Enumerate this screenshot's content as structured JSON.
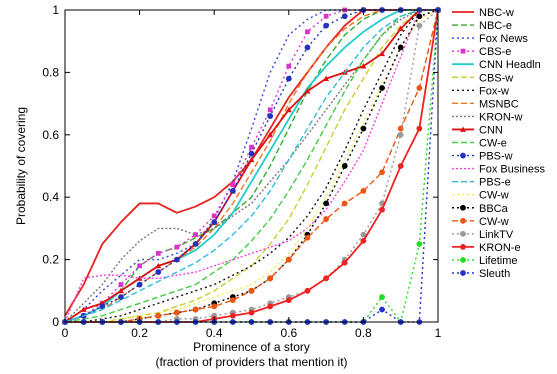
{
  "chart_data": {
    "type": "line",
    "xlabel_lines": [
      "Prominence of a story",
      "(fraction of providers that mention it)"
    ],
    "ylabel": "Probability of covering",
    "xlim": [
      0,
      1
    ],
    "ylim": [
      0,
      1
    ],
    "x_ticks": [
      "0",
      "0.2",
      "0.4",
      "0.6",
      "0.8",
      "1"
    ],
    "y_ticks": [
      "0",
      "0.2",
      "0.4",
      "0.6",
      "0.8",
      "1"
    ],
    "grid": false,
    "legend_position": "right",
    "series": [
      {
        "name": "NBC-w",
        "color": "#e8231f",
        "dash": "",
        "marker": "",
        "x": [
          0,
          0.05,
          0.1,
          0.15,
          0.2,
          0.25,
          0.3,
          0.35,
          0.4,
          0.45,
          0.5,
          0.55,
          0.6,
          0.65,
          0.7,
          0.75,
          0.8,
          0.85,
          0.9,
          0.95,
          1
        ],
        "y": [
          0.02,
          0.12,
          0.25,
          0.32,
          0.38,
          0.38,
          0.35,
          0.37,
          0.4,
          0.45,
          0.52,
          0.62,
          0.72,
          0.8,
          0.88,
          0.95,
          1,
          1,
          1,
          1,
          1
        ]
      },
      {
        "name": "NBC-e",
        "color": "#33aa33",
        "dash": "6,3",
        "marker": "",
        "x": [
          0,
          0.05,
          0.1,
          0.15,
          0.2,
          0.25,
          0.3,
          0.35,
          0.4,
          0.45,
          0.5,
          0.55,
          0.6,
          0.65,
          0.7,
          0.75,
          0.8,
          0.85,
          0.9,
          0.95,
          1
        ],
        "y": [
          0,
          0.02,
          0.05,
          0.1,
          0.18,
          0.22,
          0.24,
          0.27,
          0.3,
          0.35,
          0.4,
          0.5,
          0.62,
          0.74,
          0.84,
          0.92,
          0.97,
          1,
          1,
          1,
          1
        ]
      },
      {
        "name": "Fox News",
        "color": "#3344dd",
        "dash": "2,3",
        "marker": "",
        "x": [
          0,
          0.05,
          0.1,
          0.15,
          0.2,
          0.25,
          0.3,
          0.35,
          0.4,
          0.45,
          0.5,
          0.55,
          0.6,
          0.65,
          0.7,
          0.75,
          0.8,
          0.85,
          0.9,
          0.95,
          1
        ],
        "y": [
          0,
          0.04,
          0.1,
          0.15,
          0.2,
          0.2,
          0.22,
          0.25,
          0.33,
          0.45,
          0.62,
          0.8,
          0.92,
          0.97,
          1,
          1,
          1,
          1,
          1,
          1,
          1
        ]
      },
      {
        "name": "CBS-e",
        "color": "#dd33cc",
        "dash": "2,3",
        "marker": "square",
        "x": [
          0,
          0.05,
          0.1,
          0.15,
          0.2,
          0.25,
          0.3,
          0.35,
          0.4,
          0.45,
          0.5,
          0.55,
          0.6,
          0.65,
          0.7,
          0.75,
          0.8,
          0.85,
          0.9,
          0.95,
          1
        ],
        "y": [
          0,
          0.02,
          0.06,
          0.12,
          0.18,
          0.22,
          0.24,
          0.28,
          0.34,
          0.44,
          0.56,
          0.68,
          0.82,
          0.93,
          0.98,
          1,
          1,
          1,
          1,
          1,
          1
        ]
      },
      {
        "name": "CNN Headln",
        "color": "#22cccc",
        "dash": "",
        "marker": "",
        "x": [
          0,
          0.05,
          0.1,
          0.15,
          0.2,
          0.25,
          0.3,
          0.35,
          0.4,
          0.45,
          0.5,
          0.55,
          0.6,
          0.65,
          0.7,
          0.75,
          0.8,
          0.85,
          0.9,
          0.95,
          1
        ],
        "y": [
          0,
          0.02,
          0.05,
          0.1,
          0.14,
          0.18,
          0.2,
          0.23,
          0.28,
          0.35,
          0.45,
          0.55,
          0.65,
          0.75,
          0.82,
          0.88,
          0.93,
          0.97,
          1,
          1,
          1
        ]
      },
      {
        "name": "CBS-w",
        "color": "#cccc33",
        "dash": "6,3",
        "marker": "",
        "x": [
          0,
          0.05,
          0.1,
          0.15,
          0.2,
          0.25,
          0.3,
          0.35,
          0.4,
          0.45,
          0.5,
          0.55,
          0.6,
          0.65,
          0.7,
          0.75,
          0.8,
          0.85,
          0.9,
          0.95,
          1
        ],
        "y": [
          0,
          0,
          0,
          0.01,
          0.02,
          0.03,
          0.05,
          0.07,
          0.1,
          0.14,
          0.18,
          0.25,
          0.33,
          0.44,
          0.56,
          0.68,
          0.78,
          0.88,
          0.95,
          1,
          1
        ]
      },
      {
        "name": "Fox-w",
        "color": "#111111",
        "dash": "2,3",
        "marker": "",
        "x": [
          0,
          0.05,
          0.1,
          0.15,
          0.2,
          0.25,
          0.3,
          0.35,
          0.4,
          0.45,
          0.5,
          0.55,
          0.6,
          0.65,
          0.7,
          0.75,
          0.8,
          0.85,
          0.9,
          0.95,
          1
        ],
        "y": [
          0,
          0,
          0.01,
          0.02,
          0.04,
          0.06,
          0.08,
          0.1,
          0.12,
          0.15,
          0.18,
          0.22,
          0.27,
          0.34,
          0.43,
          0.55,
          0.68,
          0.8,
          0.92,
          1,
          1
        ]
      },
      {
        "name": "MSNBC",
        "color": "#ee7722",
        "dash": "6,3",
        "marker": "",
        "x": [
          0,
          0.05,
          0.1,
          0.15,
          0.2,
          0.25,
          0.3,
          0.35,
          0.4,
          0.45,
          0.5,
          0.55,
          0.6,
          0.65,
          0.7,
          0.75,
          0.8,
          0.85,
          0.9,
          0.95,
          1
        ],
        "y": [
          0,
          0.02,
          0.04,
          0.08,
          0.12,
          0.16,
          0.2,
          0.24,
          0.3,
          0.38,
          0.48,
          0.58,
          0.7,
          0.8,
          0.88,
          0.94,
          0.98,
          1,
          1,
          1,
          1
        ]
      },
      {
        "name": "KRON-w",
        "color": "#777777",
        "dash": "2,2",
        "marker": "",
        "x": [
          0,
          0.05,
          0.1,
          0.15,
          0.2,
          0.25,
          0.3,
          0.35,
          0.4,
          0.45,
          0.5,
          0.55,
          0.6,
          0.65,
          0.7,
          0.75,
          0.8,
          0.85,
          0.9,
          0.95,
          1
        ],
        "y": [
          0,
          0.06,
          0.12,
          0.2,
          0.26,
          0.3,
          0.3,
          0.28,
          0.3,
          0.34,
          0.38,
          0.45,
          0.52,
          0.6,
          0.68,
          0.76,
          0.84,
          0.92,
          0.97,
          1,
          1
        ]
      },
      {
        "name": "CNN",
        "color": "#dd1111",
        "dash": "",
        "marker": "triangle",
        "x": [
          0,
          0.05,
          0.1,
          0.15,
          0.2,
          0.25,
          0.3,
          0.35,
          0.4,
          0.45,
          0.5,
          0.55,
          0.6,
          0.65,
          0.7,
          0.75,
          0.8,
          0.85,
          0.9,
          0.95,
          1
        ],
        "y": [
          0,
          0.04,
          0.06,
          0.1,
          0.14,
          0.18,
          0.2,
          0.25,
          0.32,
          0.42,
          0.52,
          0.6,
          0.68,
          0.74,
          0.78,
          0.8,
          0.82,
          0.86,
          0.94,
          1,
          1
        ]
      },
      {
        "name": "CW-e",
        "color": "#44cc44",
        "dash": "6,3",
        "marker": "",
        "x": [
          0,
          0.05,
          0.1,
          0.15,
          0.2,
          0.25,
          0.3,
          0.35,
          0.4,
          0.45,
          0.5,
          0.55,
          0.6,
          0.65,
          0.7,
          0.75,
          0.8,
          0.85,
          0.9,
          0.95,
          1
        ],
        "y": [
          0,
          0.01,
          0.02,
          0.04,
          0.06,
          0.08,
          0.1,
          0.12,
          0.16,
          0.2,
          0.26,
          0.33,
          0.42,
          0.52,
          0.63,
          0.74,
          0.84,
          0.92,
          0.98,
          1,
          1
        ]
      },
      {
        "name": "PBS-w",
        "color": "#2233bb",
        "dash": "2,3",
        "marker": "circle",
        "x": [
          0,
          0.05,
          0.1,
          0.15,
          0.2,
          0.25,
          0.3,
          0.35,
          0.4,
          0.45,
          0.5,
          0.55,
          0.6,
          0.65,
          0.7,
          0.75,
          0.8,
          0.85,
          0.9,
          0.95,
          1
        ],
        "y": [
          0,
          0.02,
          0.05,
          0.08,
          0.12,
          0.16,
          0.2,
          0.25,
          0.32,
          0.42,
          0.54,
          0.66,
          0.78,
          0.88,
          0.95,
          0.98,
          1,
          1,
          1,
          1,
          1
        ]
      },
      {
        "name": "Fox Business",
        "color": "#ee44dd",
        "dash": "2,2",
        "marker": "",
        "x": [
          0,
          0.05,
          0.1,
          0.15,
          0.2,
          0.25,
          0.3,
          0.35,
          0.4,
          0.45,
          0.5,
          0.55,
          0.6,
          0.65,
          0.7,
          0.75,
          0.8,
          0.85,
          0.9,
          0.95,
          1
        ],
        "y": [
          0,
          0.14,
          0.15,
          0.15,
          0.14,
          0.14,
          0.15,
          0.16,
          0.18,
          0.2,
          0.22,
          0.24,
          0.26,
          0.3,
          0.36,
          0.45,
          0.55,
          0.7,
          0.85,
          1,
          1
        ]
      },
      {
        "name": "PBS-e",
        "color": "#33bbdd",
        "dash": "6,3",
        "marker": "",
        "x": [
          0,
          0.05,
          0.1,
          0.15,
          0.2,
          0.25,
          0.3,
          0.35,
          0.4,
          0.45,
          0.5,
          0.55,
          0.6,
          0.65,
          0.7,
          0.75,
          0.8,
          0.85,
          0.9,
          0.95,
          1
        ],
        "y": [
          0,
          0.02,
          0.04,
          0.07,
          0.1,
          0.13,
          0.16,
          0.19,
          0.23,
          0.28,
          0.34,
          0.42,
          0.52,
          0.62,
          0.72,
          0.8,
          0.88,
          0.94,
          0.98,
          1,
          1
        ]
      },
      {
        "name": "CW-w",
        "color": "#eeee44",
        "dash": "2,3",
        "marker": "",
        "x": [
          0,
          0.05,
          0.1,
          0.15,
          0.2,
          0.25,
          0.3,
          0.35,
          0.4,
          0.45,
          0.5,
          0.55,
          0.6,
          0.65,
          0.7,
          0.75,
          0.8,
          0.85,
          0.9,
          0.95,
          1
        ],
        "y": [
          0,
          0,
          0,
          0.01,
          0.02,
          0.03,
          0.04,
          0.06,
          0.08,
          0.1,
          0.12,
          0.16,
          0.22,
          0.3,
          0.4,
          0.52,
          0.64,
          0.76,
          0.88,
          0.97,
          1
        ]
      },
      {
        "name": "BBCa",
        "color": "#000000",
        "dash": "2,3",
        "marker": "circle",
        "x": [
          0,
          0.05,
          0.1,
          0.15,
          0.2,
          0.25,
          0.3,
          0.35,
          0.4,
          0.45,
          0.5,
          0.55,
          0.6,
          0.65,
          0.7,
          0.75,
          0.8,
          0.85,
          0.9,
          0.95,
          1
        ],
        "y": [
          0,
          0,
          0,
          0,
          0.01,
          0.02,
          0.03,
          0.04,
          0.06,
          0.08,
          0.1,
          0.14,
          0.2,
          0.28,
          0.38,
          0.5,
          0.62,
          0.75,
          0.88,
          0.98,
          1
        ]
      },
      {
        "name": "CW-w",
        "color": "#ee5511",
        "dash": "6,3",
        "marker": "circle",
        "x": [
          0,
          0.05,
          0.1,
          0.15,
          0.2,
          0.25,
          0.3,
          0.35,
          0.4,
          0.45,
          0.5,
          0.55,
          0.6,
          0.65,
          0.7,
          0.75,
          0.8,
          0.85,
          0.9,
          0.95,
          1
        ],
        "y": [
          0,
          0,
          0,
          0,
          0.01,
          0.02,
          0.03,
          0.04,
          0.05,
          0.07,
          0.1,
          0.14,
          0.2,
          0.27,
          0.33,
          0.38,
          0.42,
          0.48,
          0.62,
          0.75,
          1
        ]
      },
      {
        "name": "LinkTV",
        "color": "#999999",
        "dash": "2,3",
        "marker": "circle",
        "x": [
          0,
          0.05,
          0.1,
          0.15,
          0.2,
          0.25,
          0.3,
          0.35,
          0.4,
          0.45,
          0.5,
          0.55,
          0.6,
          0.65,
          0.7,
          0.75,
          0.8,
          0.85,
          0.9,
          0.95,
          1
        ],
        "y": [
          0,
          0,
          0,
          0,
          0,
          0,
          0.01,
          0.01,
          0.02,
          0.03,
          0.04,
          0.06,
          0.08,
          0.1,
          0.14,
          0.2,
          0.28,
          0.38,
          0.6,
          0.95,
          1
        ]
      },
      {
        "name": "KRON-e",
        "color": "#ee2222",
        "dash": "",
        "marker": "circle",
        "x": [
          0,
          0.05,
          0.1,
          0.15,
          0.2,
          0.25,
          0.3,
          0.35,
          0.4,
          0.45,
          0.5,
          0.55,
          0.6,
          0.65,
          0.7,
          0.75,
          0.8,
          0.85,
          0.9,
          0.95,
          1
        ],
        "y": [
          0,
          0,
          0,
          0,
          0,
          0,
          0,
          0,
          0.01,
          0.02,
          0.03,
          0.05,
          0.07,
          0.1,
          0.14,
          0.19,
          0.26,
          0.36,
          0.5,
          0.62,
          1
        ]
      },
      {
        "name": "Lifetime",
        "color": "#22dd22",
        "dash": "2,3",
        "marker": "circle",
        "x": [
          0,
          0.05,
          0.1,
          0.15,
          0.2,
          0.25,
          0.3,
          0.35,
          0.4,
          0.45,
          0.5,
          0.55,
          0.6,
          0.65,
          0.7,
          0.75,
          0.8,
          0.85,
          0.9,
          0.95,
          1
        ],
        "y": [
          0,
          0,
          0,
          0,
          0,
          0,
          0,
          0,
          0,
          0,
          0,
          0,
          0,
          0,
          0,
          0,
          0,
          0.08,
          0,
          0.25,
          1
        ]
      },
      {
        "name": "Sleuth",
        "color": "#2233cc",
        "dash": "2,3",
        "marker": "circle",
        "x": [
          0,
          0.05,
          0.1,
          0.15,
          0.2,
          0.25,
          0.3,
          0.35,
          0.4,
          0.45,
          0.5,
          0.55,
          0.6,
          0.65,
          0.7,
          0.75,
          0.8,
          0.85,
          0.9,
          0.95,
          1
        ],
        "y": [
          0,
          0,
          0,
          0,
          0,
          0,
          0,
          0,
          0,
          0,
          0,
          0,
          0,
          0,
          0,
          0,
          0,
          0.04,
          0,
          0,
          1
        ]
      }
    ]
  }
}
